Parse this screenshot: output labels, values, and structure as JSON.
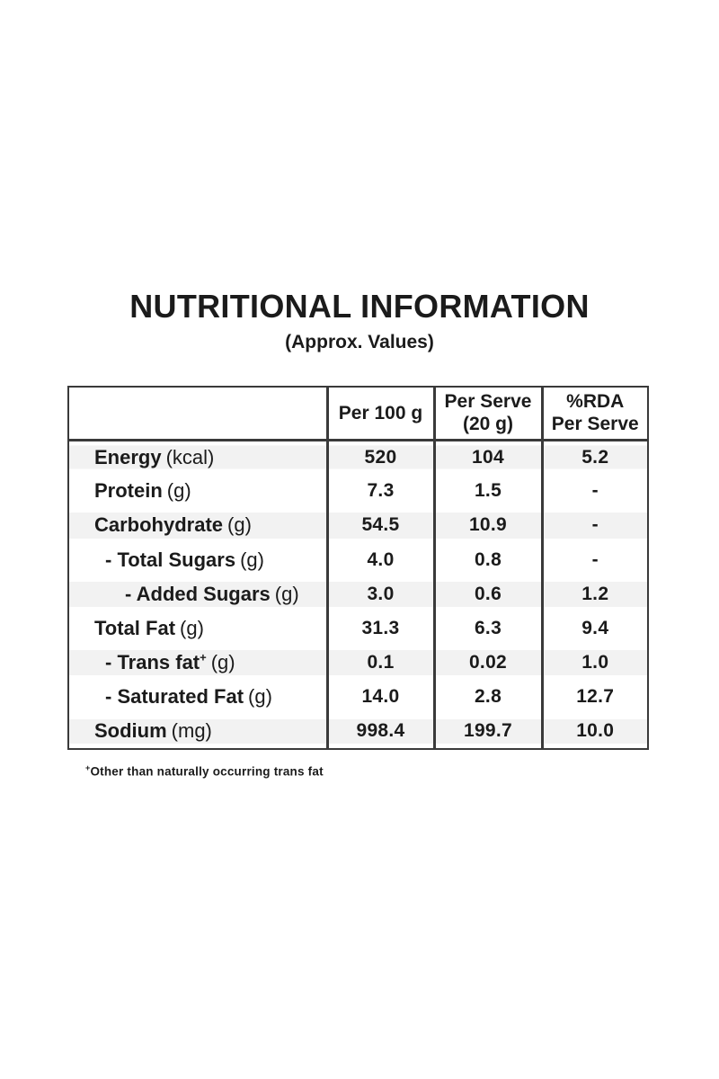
{
  "page": {
    "title": "NUTRITIONAL INFORMATION",
    "subtitle": "(Approx. Values)"
  },
  "table": {
    "header": {
      "per100": "Per 100 g",
      "serve_line1": "Per Serve",
      "serve_line2": "(20 g)",
      "rda_line1": "%RDA",
      "rda_line2": "Per Serve"
    },
    "rows": [
      {
        "name": "Energy",
        "unit": "(kcal)",
        "per100": "520",
        "per_serve": "104",
        "rda": "5.2"
      },
      {
        "name": "Protein",
        "unit": "(g)",
        "per100": "7.3",
        "per_serve": "1.5",
        "rda": "-"
      },
      {
        "name": "Carbohydrate",
        "unit": "(g)",
        "per100": "54.5",
        "per_serve": "10.9",
        "rda": "-"
      },
      {
        "name": "- Total Sugars",
        "unit": "(g)",
        "per100": "4.0",
        "per_serve": "0.8",
        "rda": "-"
      },
      {
        "name": "- Added Sugars",
        "unit": "(g)",
        "per100": "3.0",
        "per_serve": "0.6",
        "rda": "1.2"
      },
      {
        "name": "Total Fat",
        "unit": "(g)",
        "per100": "31.3",
        "per_serve": "6.3",
        "rda": "9.4"
      },
      {
        "name": "- Trans fat",
        "sup": "+",
        "unit": "(g)",
        "per100": "0.1",
        "per_serve": "0.02",
        "rda": "1.0"
      },
      {
        "name": "- Saturated Fat",
        "unit": "(g)",
        "per100": "14.0",
        "per_serve": "2.8",
        "rda": "12.7"
      },
      {
        "name": "Sodium",
        "unit": "(mg)",
        "per100": "998.4",
        "per_serve": "199.7",
        "rda": "10.0"
      }
    ]
  },
  "footnote": {
    "sup": "+",
    "text": "Other than naturally occurring trans fat"
  },
  "colors": {
    "text": "#1b1b1b",
    "border": "#3a3a3a",
    "stripe": "#f2f2f2",
    "background": "#ffffff"
  }
}
